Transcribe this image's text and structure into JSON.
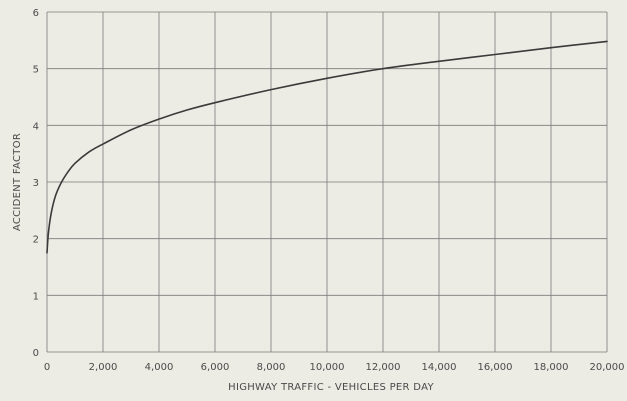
{
  "chart_data": {
    "type": "line",
    "title": "",
    "xlabel": "HIGHWAY TRAFFIC - VEHICLES PER DAY",
    "ylabel": "ACCIDENT FACTOR",
    "xlim": [
      0,
      20000
    ],
    "ylim": [
      0,
      6
    ],
    "x_ticks": [
      0,
      2000,
      4000,
      6000,
      8000,
      10000,
      12000,
      14000,
      16000,
      18000,
      20000
    ],
    "x_tick_labels": [
      "0",
      "2,000",
      "4,000",
      "6,000",
      "8,000",
      "10,000",
      "12,000",
      "14,000",
      "16,000",
      "18,000",
      "20,000"
    ],
    "y_ticks": [
      0,
      1,
      2,
      3,
      4,
      5,
      6
    ],
    "y_tick_labels": [
      "0",
      "1",
      "2",
      "3",
      "4",
      "5",
      "6"
    ],
    "grid": true,
    "legend": "none",
    "colors": {
      "line": "#3a3a3a",
      "grid": "#7a7a7a",
      "background": "#ecece4"
    },
    "series": [
      {
        "x": [
          0,
          50,
          150,
          300,
          500,
          750,
          1000,
          1500,
          2000,
          3000,
          4000,
          5000,
          6000,
          8000,
          10000,
          12000,
          14000,
          16000,
          18000,
          20000
        ],
        "y": [
          1.75,
          2.1,
          2.45,
          2.75,
          2.98,
          3.18,
          3.33,
          3.53,
          3.67,
          3.92,
          4.11,
          4.27,
          4.4,
          4.63,
          4.83,
          5.0,
          5.13,
          5.25,
          5.37,
          5.48
        ]
      }
    ]
  }
}
